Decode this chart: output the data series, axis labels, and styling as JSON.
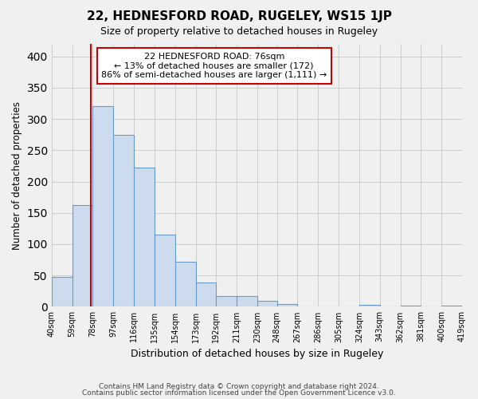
{
  "title": "22, HEDNESFORD ROAD, RUGELEY, WS15 1JP",
  "subtitle": "Size of property relative to detached houses in Rugeley",
  "xlabel": "Distribution of detached houses by size in Rugeley",
  "ylabel": "Number of detached properties",
  "bar_values": [
    48,
    163,
    320,
    275,
    222,
    115,
    72,
    39,
    17,
    17,
    10,
    5,
    0,
    0,
    0,
    3,
    0,
    2,
    0,
    2
  ],
  "bin_edges": [
    40,
    59,
    78,
    97,
    116,
    135,
    154,
    173,
    192,
    211,
    230,
    248,
    267,
    286,
    305,
    324,
    343,
    362,
    381,
    400,
    419
  ],
  "bin_tick_labels": [
    "40sqm",
    "59sqm",
    "78sqm",
    "97sqm",
    "116sqm",
    "135sqm",
    "154sqm",
    "173sqm",
    "192sqm",
    "211sqm",
    "230sqm",
    "248sqm",
    "267sqm",
    "286sqm",
    "305sqm",
    "324sqm",
    "343sqm",
    "362sqm",
    "381sqm",
    "400sqm",
    "419sqm"
  ],
  "bar_color": "#ccdcee",
  "bar_edge_color": "#6699cc",
  "marker_value": 76,
  "marker_color": "#cc0000",
  "annotation_line1": "22 HEDNESFORD ROAD: 76sqm",
  "annotation_line2": "← 13% of detached houses are smaller (172)",
  "annotation_line3": "86% of semi-detached houses are larger (1,111) →",
  "ylim": [
    0,
    420
  ],
  "yticks": [
    0,
    50,
    100,
    150,
    200,
    250,
    300,
    350,
    400
  ],
  "footer_line1": "Contains HM Land Registry data © Crown copyright and database right 2024.",
  "footer_line2": "Contains public sector information licensed under the Open Government Licence v3.0.",
  "background_color": "#f0f0f0",
  "grid_color": "#cccccc"
}
